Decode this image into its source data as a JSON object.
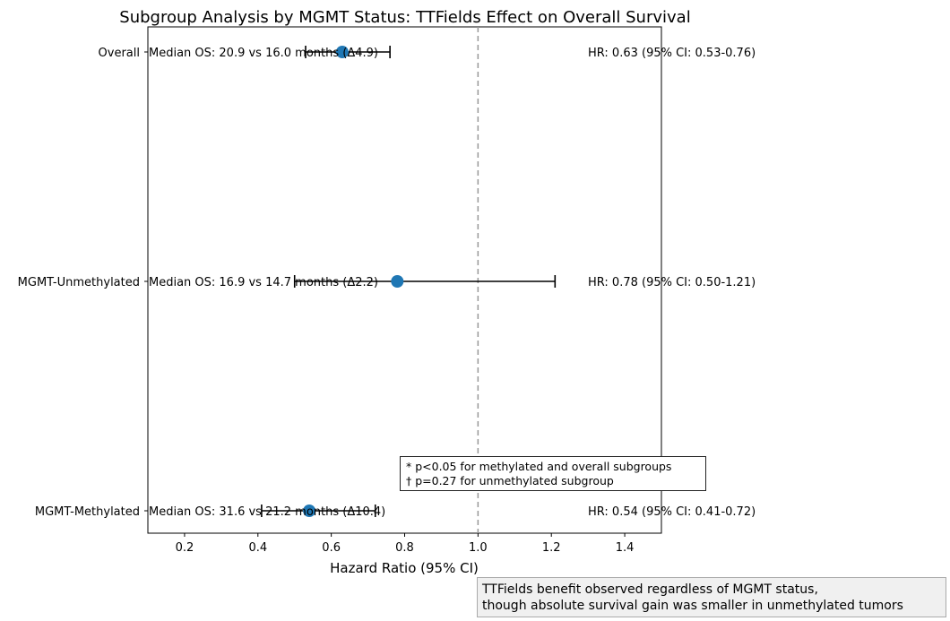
{
  "chart_data": {
    "type": "forest",
    "title": "Subgroup Analysis by MGMT Status: TTFields Effect on Overall Survival",
    "xlabel": "Hazard Ratio (95% CI)",
    "xlim": [
      0.1,
      1.5
    ],
    "xticks": [
      "0.2",
      "0.4",
      "0.6",
      "0.8",
      "1.0",
      "1.2",
      "1.4"
    ],
    "reference_line": 1.0,
    "grid": false,
    "point_color": "#1f77b4",
    "subgroups": [
      {
        "name": "Overall",
        "hr": 0.63,
        "ci_low": 0.53,
        "ci_high": 0.76,
        "median_label": "Median OS: 20.9 vs 16.0 months (Δ4.9)",
        "hr_label": "HR: 0.63 (95% CI: 0.53-0.76)"
      },
      {
        "name": "MGMT-Unmethylated",
        "hr": 0.78,
        "ci_low": 0.5,
        "ci_high": 1.21,
        "median_label": "Median OS: 16.9 vs 14.7 months (Δ2.2)",
        "hr_label": "HR: 0.78 (95% CI: 0.50-1.21)"
      },
      {
        "name": "MGMT-Methylated",
        "hr": 0.54,
        "ci_low": 0.41,
        "ci_high": 0.72,
        "median_label": "Median OS: 31.6 vs 21.2 months (Δ10.4)",
        "hr_label": "HR: 0.54 (95% CI: 0.41-0.72)"
      }
    ],
    "annotations": {
      "significance": [
        "* p<0.05 for methylated and overall subgroups",
        "† p=0.27 for unmethylated subgroup"
      ],
      "caption": [
        "TTFields benefit observed regardless of MGMT status,",
        "though absolute survival gain was smaller in unmethylated tumors"
      ]
    }
  }
}
